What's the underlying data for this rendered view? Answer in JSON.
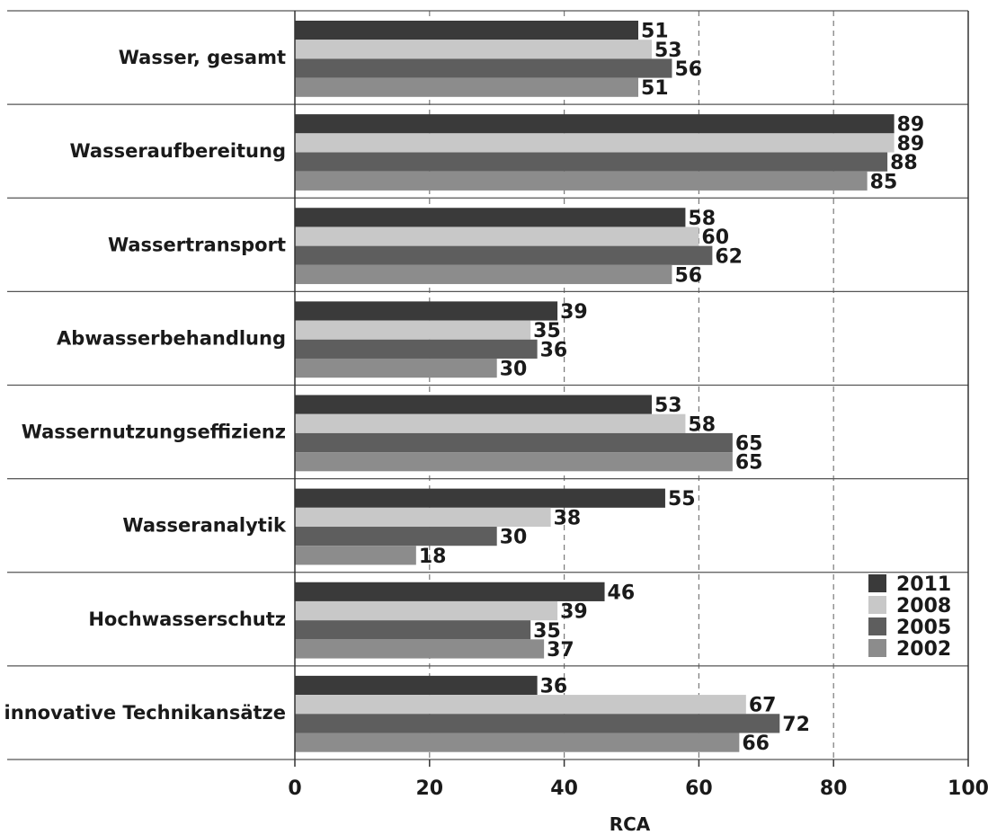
{
  "chart_data": {
    "type": "bar",
    "orientation": "horizontal",
    "categories": [
      "Wasser, gesamt",
      "Wasseraufbereitung",
      "Wassertransport",
      "Abwasserbehandlung",
      "Wassernutzungseffizienz",
      "Wasseranalytik",
      "Hochwasserschutz",
      "innovative Technikansätze"
    ],
    "series": [
      {
        "name": "2011",
        "color": "#3a3a3a",
        "values": [
          51,
          89,
          58,
          39,
          53,
          55,
          46,
          36
        ]
      },
      {
        "name": "2008",
        "color": "#c8c8c8",
        "values": [
          53,
          89,
          60,
          35,
          58,
          38,
          39,
          67
        ]
      },
      {
        "name": "2005",
        "color": "#5e5e5e",
        "values": [
          56,
          88,
          62,
          36,
          65,
          30,
          35,
          72
        ]
      },
      {
        "name": "2002",
        "color": "#8c8c8c",
        "values": [
          51,
          85,
          56,
          30,
          65,
          18,
          37,
          66
        ]
      }
    ],
    "xlabel": "RCA",
    "xlim": [
      0,
      100
    ],
    "xticks": [
      "0",
      "20",
      "40",
      "60",
      "80",
      "100"
    ],
    "grid": "vertical dashed",
    "legend": "bottom-right"
  }
}
